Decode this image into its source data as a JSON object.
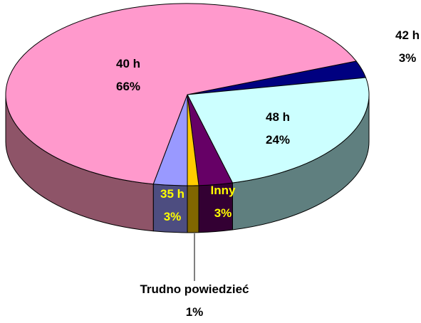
{
  "chart_data": {
    "type": "pie",
    "categories": [
      "42 h",
      "48 h",
      "Inny",
      "Trudno powiedzieć",
      "35 h",
      "40 h"
    ],
    "values": [
      3,
      24,
      3,
      1,
      3,
      66
    ],
    "value_labels": [
      "3%",
      "24%",
      "3%",
      "1%",
      "3%",
      "66%"
    ],
    "colors": [
      "#000080",
      "#ccffff",
      "#660066",
      "#ffcc00",
      "#9999ff",
      "#ff99cc"
    ],
    "side_colors": [
      "#00004d",
      "#5f7f7f",
      "#330033",
      "#806600",
      "#4d4d80",
      "#8e5468"
    ]
  }
}
